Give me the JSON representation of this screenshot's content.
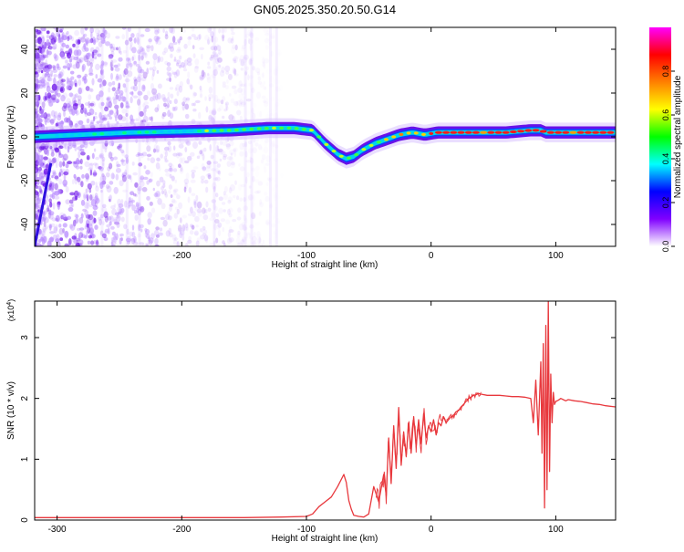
{
  "title": "GN05.2025.350.20.50.G14",
  "chart_data": [
    {
      "type": "heatmap",
      "name": "spectrogram",
      "xlabel": "Height of straight line (km)",
      "ylabel": "Frequency (Hz)",
      "xlim": [
        -318,
        148
      ],
      "ylim": [
        -50,
        50
      ],
      "xticks": [
        -300,
        -200,
        -100,
        0,
        100
      ],
      "yticks": [
        -40,
        -20,
        0,
        20,
        40
      ],
      "ridge": {
        "x": [
          -318,
          -280,
          -240,
          -200,
          -160,
          -130,
          -110,
          -95,
          -85,
          -75,
          -68,
          -62,
          -55,
          -45,
          -35,
          -25,
          -15,
          -10,
          -5,
          0,
          5,
          20,
          40,
          60,
          80,
          88,
          92,
          100,
          120,
          148
        ],
        "freq": [
          0,
          1,
          2,
          2.5,
          3,
          4,
          4,
          3,
          -3,
          -8,
          -10,
          -9,
          -6,
          -3,
          -1,
          1,
          2,
          1.5,
          1,
          1.5,
          2,
          2,
          2,
          2,
          3,
          3,
          2,
          2,
          2,
          2
        ]
      },
      "colorbar": {
        "label": "Normalized spectral amplitude",
        "range": [
          0,
          1
        ],
        "ticks": [
          "0.0",
          "0.2",
          "0.4",
          "0.6",
          "0.8"
        ],
        "tick_values": [
          0,
          0.2,
          0.4,
          0.6,
          0.8
        ],
        "colors": [
          "#ffffff",
          "#8000ff",
          "#0000ff",
          "#00ffff",
          "#00ff00",
          "#ffff00",
          "#ff8000",
          "#ff0000",
          "#ff00ff"
        ]
      }
    },
    {
      "type": "line",
      "name": "snr",
      "xlabel": "Height of straight line (km)",
      "ylabel": "SNR (10 * v/v)",
      "y_multiplier_base": "(x10",
      "y_multiplier_exp": "4",
      "y_multiplier_close": ")",
      "xlim": [
        -318,
        148
      ],
      "ylim": [
        0,
        3.6
      ],
      "xticks": [
        -300,
        -200,
        -100,
        0,
        100
      ],
      "yticks": [
        0,
        1,
        2,
        3
      ],
      "color": "#e8383d",
      "series": [
        {
          "name": "SNR",
          "x": [
            -318,
            -250,
            -200,
            -150,
            -120,
            -100,
            -95,
            -90,
            -85,
            -80,
            -75,
            -70,
            -68,
            -66,
            -64,
            -62,
            -58,
            -54,
            -50,
            -46,
            -42,
            -38,
            -36,
            -34,
            -32,
            -30,
            -28,
            -26,
            -24,
            -22,
            -20,
            -18,
            -16,
            -14,
            -12,
            -10,
            -8,
            -6,
            -4,
            -2,
            0,
            2,
            4,
            6,
            8,
            10,
            12,
            14,
            16,
            18,
            20,
            22,
            24,
            26,
            28,
            30,
            32,
            34,
            36,
            38,
            40,
            45,
            50,
            55,
            60,
            65,
            70,
            75,
            80,
            82,
            84,
            86,
            88,
            89,
            90,
            91,
            92,
            93,
            94,
            95,
            96,
            97,
            98,
            99,
            100,
            102,
            104,
            106,
            108,
            110,
            115,
            120,
            125,
            130,
            135,
            140,
            148
          ],
          "y": [
            0.04,
            0.04,
            0.04,
            0.04,
            0.05,
            0.06,
            0.1,
            0.22,
            0.3,
            0.38,
            0.55,
            0.75,
            0.62,
            0.32,
            0.18,
            0.08,
            0.06,
            0.05,
            0.1,
            0.55,
            0.3,
            0.75,
            0.4,
            1.35,
            0.6,
            1.55,
            0.85,
            1.85,
            0.9,
            1.45,
            1.05,
            1.6,
            1.1,
            1.7,
            1.2,
            1.65,
            1.25,
            1.75,
            1.35,
            1.55,
            1.45,
            1.65,
            1.4,
            1.6,
            1.55,
            1.7,
            1.6,
            1.65,
            1.7,
            1.72,
            1.78,
            1.8,
            1.86,
            1.9,
            1.95,
            2.0,
            2.02,
            2.05,
            2.06,
            2.08,
            2.07,
            2.05,
            2.05,
            2.05,
            2.04,
            2.03,
            2.03,
            2.02,
            2.0,
            1.6,
            2.3,
            1.4,
            2.6,
            1.1,
            2.9,
            0.2,
            3.2,
            0.5,
            3.6,
            0.8,
            2.4,
            1.6,
            2.1,
            1.9,
            1.95,
            1.97,
            2.0,
            1.98,
            1.96,
            1.98,
            1.96,
            1.95,
            1.93,
            1.91,
            1.9,
            1.88,
            1.86
          ]
        }
      ]
    }
  ]
}
